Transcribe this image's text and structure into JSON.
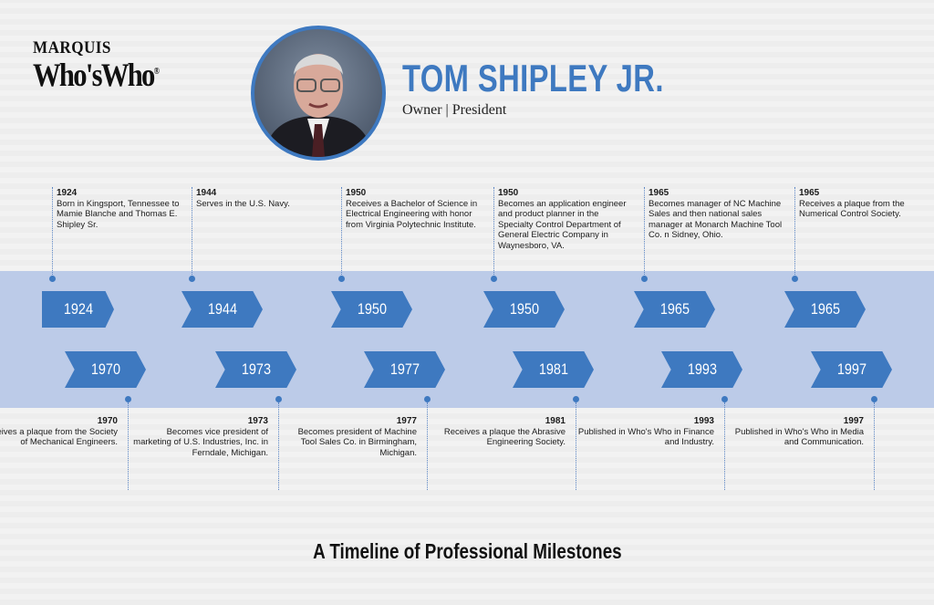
{
  "logo": {
    "line1": "MARQUIS",
    "line2": "Who'sWho",
    "mark": "®"
  },
  "profile": {
    "name": "TOM SHIPLEY JR.",
    "role": "Owner | President"
  },
  "colors": {
    "accent": "#3e79c0",
    "band": "#bccbe8",
    "background": "#f2f2f2"
  },
  "top_events": [
    {
      "year": "1924",
      "text": "Born in Kingsport, Tennessee to Mamie Blanche and Thomas E. Shipley Sr."
    },
    {
      "year": "1944",
      "text": "Serves in the U.S. Navy."
    },
    {
      "year": "1950",
      "text": "Receives a Bachelor of Science in Electrical Engineering with honor from Virginia Polytechnic Institute."
    },
    {
      "year": "1950",
      "text": "Becomes an application engineer and product planner in the Specialty Control Department of General Electric Company in Waynesboro, VA."
    },
    {
      "year": "1965",
      "text": "Becomes manager of NC Machine Sales and then national sales manager at Monarch Machine Tool Co. n Sidney, Ohio."
    },
    {
      "year": "1965",
      "text": "Receives a plaque from the Numerical Control Society."
    }
  ],
  "bottom_events": [
    {
      "year": "1970",
      "text": "Receives a plaque from the Society of Mechanical Engineers."
    },
    {
      "year": "1973",
      "text": "Becomes vice president of marketing of U.S. Industries, Inc. in Ferndale, Michigan."
    },
    {
      "year": "1977",
      "text": "Becomes president of Machine Tool Sales Co. in Birmingham, Michigan."
    },
    {
      "year": "1981",
      "text": "Receives a plaque the Abrasive Engineering Society."
    },
    {
      "year": "1993",
      "text": "Published in Who's Who in Finance and Industry."
    },
    {
      "year": "1997",
      "text": "Published in Who's Who in Media and Communication."
    }
  ],
  "footer": {
    "title": "A Timeline of Professional Milestones"
  }
}
